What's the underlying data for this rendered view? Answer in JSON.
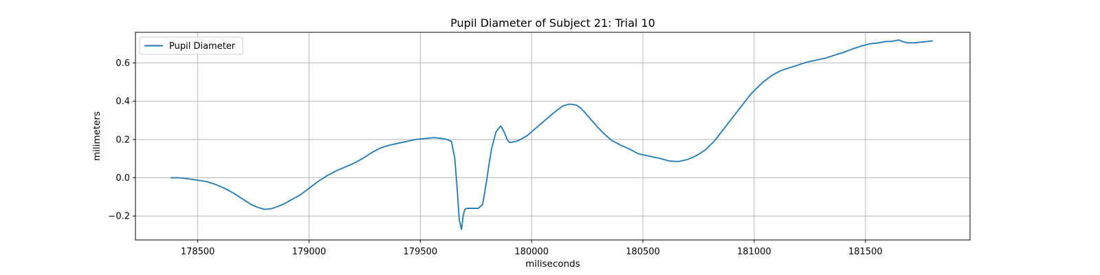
{
  "chart_data": {
    "type": "line",
    "title": "Pupil Diameter of Subject 21: Trial 10",
    "xlabel": "miliseconds",
    "ylabel": "milimeters",
    "xlim": [
      178220,
      181970
    ],
    "ylim": [
      -0.325,
      0.76
    ],
    "xticks": [
      178500,
      179000,
      179500,
      180000,
      180500,
      181000,
      181500
    ],
    "yticks": [
      -0.2,
      0.0,
      0.2,
      0.4,
      0.6
    ],
    "ytick_labels": [
      "−0.2",
      "0.0",
      "0.2",
      "0.4",
      "0.6"
    ],
    "grid": true,
    "legend_position": "upper-left",
    "colors": {
      "series": "#1f77b4",
      "grid": "#b0b0b0"
    },
    "series": [
      {
        "name": "Pupil Diameter",
        "x": [
          178380,
          178410,
          178440,
          178470,
          178500,
          178540,
          178580,
          178620,
          178660,
          178700,
          178740,
          178770,
          178800,
          178830,
          178860,
          178890,
          178920,
          178960,
          179000,
          179040,
          179080,
          179120,
          179160,
          179200,
          179240,
          179280,
          179320,
          179360,
          179400,
          179440,
          179480,
          179520,
          179560,
          179600,
          179620,
          179640,
          179655,
          179665,
          179675,
          179685,
          179692,
          179700,
          179710,
          179730,
          179760,
          179780,
          179800,
          179810,
          179820,
          179840,
          179860,
          179870,
          179880,
          179890,
          179900,
          179910,
          179930,
          179950,
          179980,
          180020,
          180060,
          180100,
          180140,
          180170,
          180200,
          180220,
          180240,
          180270,
          180300,
          180330,
          180360,
          180400,
          180440,
          180480,
          180500,
          180540,
          180580,
          180620,
          180660,
          180700,
          180740,
          180780,
          180820,
          180860,
          180900,
          180940,
          180980,
          181000,
          181040,
          181080,
          181120,
          181160,
          181200,
          181240,
          181280,
          181320,
          181360,
          181400,
          181440,
          181480,
          181520,
          181560,
          181590,
          181610,
          181630,
          181650,
          181670,
          181690,
          181720,
          181760,
          181800
        ],
        "y": [
          0.0,
          0.0,
          -0.003,
          -0.008,
          -0.013,
          -0.02,
          -0.035,
          -0.055,
          -0.08,
          -0.11,
          -0.14,
          -0.155,
          -0.165,
          -0.162,
          -0.15,
          -0.135,
          -0.115,
          -0.09,
          -0.055,
          -0.02,
          0.01,
          0.035,
          0.055,
          0.075,
          0.1,
          0.13,
          0.155,
          0.17,
          0.18,
          0.19,
          0.2,
          0.205,
          0.21,
          0.205,
          0.2,
          0.19,
          0.1,
          -0.05,
          -0.22,
          -0.27,
          -0.2,
          -0.165,
          -0.16,
          -0.16,
          -0.16,
          -0.14,
          0.0,
          0.08,
          0.15,
          0.24,
          0.27,
          0.255,
          0.23,
          0.2,
          0.185,
          0.185,
          0.19,
          0.2,
          0.22,
          0.26,
          0.3,
          0.34,
          0.375,
          0.385,
          0.38,
          0.365,
          0.34,
          0.3,
          0.26,
          0.225,
          0.195,
          0.17,
          0.15,
          0.125,
          0.12,
          0.11,
          0.1,
          0.087,
          0.085,
          0.095,
          0.115,
          0.145,
          0.19,
          0.25,
          0.31,
          0.37,
          0.43,
          0.455,
          0.5,
          0.535,
          0.56,
          0.575,
          0.59,
          0.605,
          0.615,
          0.625,
          0.64,
          0.655,
          0.672,
          0.688,
          0.7,
          0.705,
          0.712,
          0.712,
          0.715,
          0.72,
          0.71,
          0.705,
          0.705,
          0.71,
          0.715
        ]
      }
    ]
  }
}
